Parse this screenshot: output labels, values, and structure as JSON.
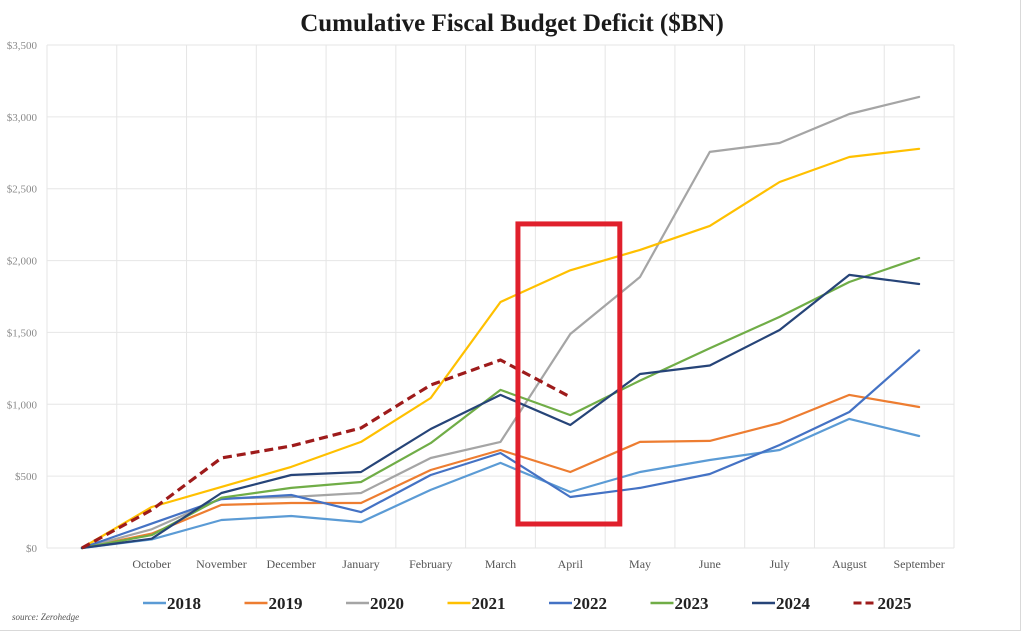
{
  "chart_data": {
    "type": "line",
    "title": "Cumulative Fiscal Budget Deficit ($BN)",
    "xlabel": "",
    "ylabel": "",
    "categories": [
      "",
      "October",
      "November",
      "December",
      "January",
      "February",
      "March",
      "April",
      "May",
      "June",
      "July",
      "August",
      "September"
    ],
    "ylim": [
      0,
      3500
    ],
    "yticks": [
      0,
      500,
      1000,
      1500,
      2000,
      2500,
      3000,
      3500
    ],
    "ytick_labels": [
      "$0",
      "$500",
      "$1,000",
      "$1,500",
      "$2,000",
      "$2,500",
      "$3,000",
      "$3,500"
    ],
    "grid": true,
    "legend_position": "bottom",
    "series": [
      {
        "name": "2018",
        "color": "#5b9bd5",
        "dashed": false,
        "values": [
          0,
          60,
          195,
          223,
          180,
          404,
          592,
          390,
          529,
          612,
          682,
          898,
          779
        ]
      },
      {
        "name": "2019",
        "color": "#ed7d31",
        "dashed": false,
        "values": [
          0,
          100,
          300,
          313,
          313,
          543,
          682,
          529,
          738,
          745,
          870,
          1065,
          981
        ]
      },
      {
        "name": "2020",
        "color": "#a5a5a5",
        "dashed": false,
        "values": [
          0,
          130,
          345,
          355,
          383,
          626,
          738,
          1489,
          1886,
          2756,
          2818,
          3020,
          3139
        ]
      },
      {
        "name": "2021",
        "color": "#ffc000",
        "dashed": false,
        "values": [
          0,
          285,
          425,
          564,
          738,
          1044,
          1712,
          1932,
          2074,
          2241,
          2547,
          2721,
          2778
        ]
      },
      {
        "name": "2022",
        "color": "#4472c4",
        "dashed": false,
        "values": [
          0,
          170,
          340,
          369,
          250,
          508,
          661,
          355,
          418,
          515,
          717,
          946,
          1375
        ]
      },
      {
        "name": "2023",
        "color": "#70ad47",
        "dashed": false,
        "values": [
          0,
          90,
          350,
          418,
          459,
          730,
          1100,
          925,
          1165,
          1390,
          1608,
          1851,
          2018
        ]
      },
      {
        "name": "2024",
        "color": "#264478",
        "dashed": false,
        "values": [
          0,
          65,
          383,
          508,
          529,
          828,
          1065,
          856,
          1211,
          1270,
          1517,
          1900,
          1837
        ]
      },
      {
        "name": "2025",
        "color": "#9e1b1b",
        "dashed": true,
        "values": [
          0,
          265,
          626,
          710,
          835,
          1134,
          1308,
          1051,
          null,
          null,
          null,
          null,
          null
        ]
      }
    ],
    "annotations": [
      {
        "type": "highlight-box",
        "color": "#e0202c",
        "x_from": 6.25,
        "x_to": 7.71,
        "y_from": 167,
        "y_to": 2255,
        "note": "March–April region"
      }
    ],
    "source": "source: Zerohedge"
  }
}
